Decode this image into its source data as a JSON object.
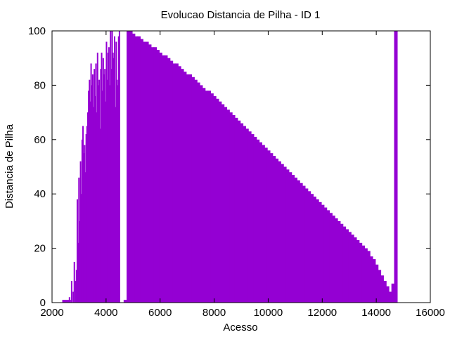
{
  "chart_data": {
    "type": "bar",
    "title": "Evolucao Distancia de Pilha - ID 1",
    "xlabel": "Acesso",
    "ylabel": "Distancia de Pilha",
    "xlim": [
      2000,
      16000
    ],
    "ylim": [
      0,
      100
    ],
    "xticks": [
      2000,
      4000,
      6000,
      8000,
      10000,
      12000,
      14000,
      16000
    ],
    "yticks": [
      0,
      20,
      40,
      60,
      80,
      100
    ],
    "color": "#9400D3",
    "grid": false,
    "legend": "none",
    "series": [
      {
        "noisy_bars": [
          [
            2380,
            1
          ],
          [
            2620,
            2
          ],
          [
            2700,
            8
          ],
          [
            2760,
            4
          ],
          [
            2800,
            15
          ],
          [
            2850,
            8
          ],
          [
            2880,
            12
          ],
          [
            2910,
            38
          ],
          [
            2940,
            22
          ],
          [
            2970,
            46
          ],
          [
            3000,
            30
          ],
          [
            3030,
            52
          ],
          [
            3060,
            40
          ],
          [
            3090,
            60
          ],
          [
            3120,
            65
          ],
          [
            3150,
            55
          ],
          [
            3180,
            58
          ],
          [
            3210,
            48
          ],
          [
            3240,
            62
          ],
          [
            3270,
            65
          ],
          [
            3300,
            70
          ],
          [
            3330,
            78
          ],
          [
            3360,
            82
          ],
          [
            3390,
            74
          ],
          [
            3420,
            88
          ],
          [
            3450,
            80
          ],
          [
            3480,
            84
          ],
          [
            3510,
            72
          ],
          [
            3540,
            86
          ],
          [
            3570,
            76
          ],
          [
            3600,
            88
          ],
          [
            3630,
            70
          ],
          [
            3660,
            92
          ],
          [
            3690,
            80
          ],
          [
            3720,
            82
          ],
          [
            3750,
            64
          ],
          [
            3780,
            86
          ],
          [
            3810,
            92
          ],
          [
            3840,
            78
          ],
          [
            3870,
            90
          ],
          [
            3900,
            84
          ],
          [
            3930,
            86
          ],
          [
            3960,
            74
          ],
          [
            3990,
            96
          ],
          [
            4020,
            82
          ],
          [
            4050,
            92
          ],
          [
            4080,
            94
          ],
          [
            4110,
            80
          ],
          [
            4140,
            100
          ],
          [
            4170,
            86
          ],
          [
            4200,
            100
          ],
          [
            4230,
            92
          ],
          [
            4260,
            90
          ],
          [
            4290,
            98
          ],
          [
            4320,
            72
          ],
          [
            4350,
            96
          ],
          [
            4380,
            82
          ],
          [
            4410,
            80
          ],
          [
            4440,
            98
          ],
          [
            4470,
            100
          ]
        ],
        "bars": [
          [
            4650,
            1
          ],
          [
            4760,
            100
          ],
          [
            4860,
            100
          ],
          [
            4960,
            99
          ],
          [
            5060,
            98
          ],
          [
            5160,
            98
          ],
          [
            5260,
            97
          ],
          [
            5360,
            96
          ],
          [
            5460,
            96
          ],
          [
            5560,
            95
          ],
          [
            5660,
            94
          ],
          [
            5760,
            94
          ],
          [
            5860,
            93
          ],
          [
            5960,
            92
          ],
          [
            6060,
            91
          ],
          [
            6160,
            91
          ],
          [
            6260,
            90
          ],
          [
            6360,
            89
          ],
          [
            6460,
            88
          ],
          [
            6560,
            88
          ],
          [
            6660,
            87
          ],
          [
            6760,
            86
          ],
          [
            6860,
            85
          ],
          [
            6960,
            84
          ],
          [
            7060,
            84
          ],
          [
            7160,
            83
          ],
          [
            7260,
            82
          ],
          [
            7360,
            81
          ],
          [
            7460,
            80
          ],
          [
            7560,
            79
          ],
          [
            7660,
            78
          ],
          [
            7760,
            78
          ],
          [
            7860,
            77
          ],
          [
            7960,
            76
          ],
          [
            8060,
            75
          ],
          [
            8160,
            74
          ],
          [
            8260,
            73
          ],
          [
            8360,
            72
          ],
          [
            8460,
            71
          ],
          [
            8560,
            70
          ],
          [
            8660,
            69
          ],
          [
            8760,
            68
          ],
          [
            8860,
            67
          ],
          [
            8960,
            66
          ],
          [
            9060,
            65
          ],
          [
            9160,
            64
          ],
          [
            9260,
            63
          ],
          [
            9360,
            62
          ],
          [
            9460,
            61
          ],
          [
            9560,
            60
          ],
          [
            9660,
            59
          ],
          [
            9760,
            58
          ],
          [
            9860,
            57
          ],
          [
            9960,
            56
          ],
          [
            10060,
            55
          ],
          [
            10160,
            54
          ],
          [
            10260,
            53
          ],
          [
            10360,
            52
          ],
          [
            10460,
            51
          ],
          [
            10560,
            50
          ],
          [
            10660,
            49
          ],
          [
            10760,
            48
          ],
          [
            10860,
            47
          ],
          [
            10960,
            46
          ],
          [
            11060,
            45
          ],
          [
            11160,
            44
          ],
          [
            11260,
            43
          ],
          [
            11360,
            42
          ],
          [
            11460,
            41
          ],
          [
            11560,
            40
          ],
          [
            11660,
            39
          ],
          [
            11760,
            38
          ],
          [
            11860,
            37
          ],
          [
            11960,
            36
          ],
          [
            12060,
            35
          ],
          [
            12160,
            34
          ],
          [
            12260,
            33
          ],
          [
            12360,
            32
          ],
          [
            12460,
            31
          ],
          [
            12560,
            30
          ],
          [
            12660,
            29
          ],
          [
            12760,
            28
          ],
          [
            12860,
            27
          ],
          [
            12960,
            26
          ],
          [
            13060,
            25
          ],
          [
            13160,
            24
          ],
          [
            13260,
            23
          ],
          [
            13360,
            22
          ],
          [
            13460,
            21
          ],
          [
            13560,
            20
          ],
          [
            13660,
            19
          ],
          [
            13760,
            17
          ],
          [
            13860,
            16
          ],
          [
            13960,
            14
          ],
          [
            14060,
            12
          ],
          [
            14160,
            10
          ],
          [
            14260,
            8
          ],
          [
            14360,
            6
          ],
          [
            14460,
            4
          ],
          [
            14560,
            7
          ],
          [
            14660,
            100
          ]
        ]
      }
    ]
  }
}
